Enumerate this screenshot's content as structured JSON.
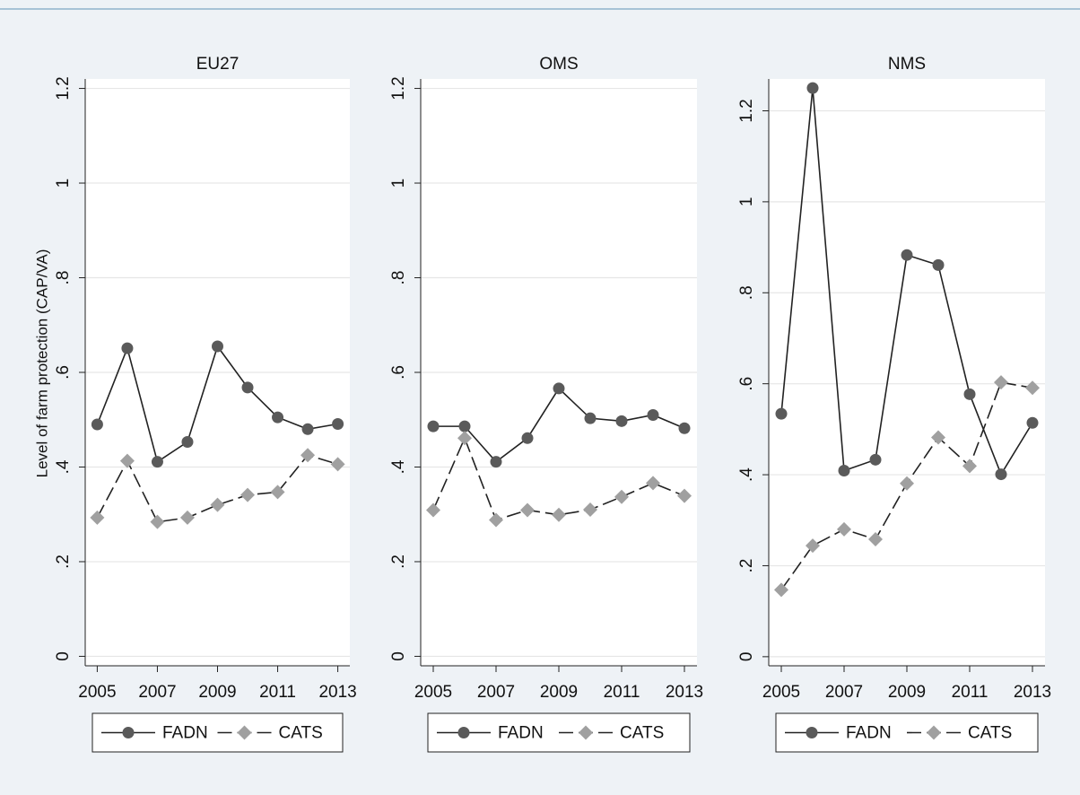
{
  "chart_data": [
    {
      "type": "line",
      "title": "EU27",
      "ylabel": "Level of farm protection (CAP/VA)",
      "x": [
        2005,
        2006,
        2007,
        2008,
        2009,
        2010,
        2011,
        2012,
        2013
      ],
      "xlim": [
        2004.6,
        2013.4
      ],
      "xticks": [
        2005,
        2007,
        2009,
        2011,
        2013
      ],
      "ylim": [
        -0.02,
        1.22
      ],
      "yticks": [
        0,
        {
          "value": 0.2,
          "label": ".2"
        },
        {
          "value": 0.4,
          "label": ".4"
        },
        {
          "value": 0.6,
          "label": ".6"
        },
        {
          "value": 0.8,
          "label": ".8"
        },
        1,
        1.2
      ],
      "grid": true,
      "series": [
        {
          "name": "FADN",
          "color": "#5a5a5a",
          "line_style": "solid",
          "marker": "circle",
          "values": [
            0.49,
            0.651,
            0.411,
            0.453,
            0.655,
            0.568,
            0.505,
            0.48,
            0.491
          ]
        },
        {
          "name": "CATS",
          "color": "#a0a0a0",
          "line_style": "dash",
          "marker": "diamond",
          "values": [
            0.293,
            0.413,
            0.284,
            0.293,
            0.32,
            0.341,
            0.347,
            0.425,
            0.406
          ]
        }
      ]
    },
    {
      "type": "line",
      "title": "OMS",
      "x": [
        2005,
        2006,
        2007,
        2008,
        2009,
        2010,
        2011,
        2012,
        2013
      ],
      "xlim": [
        2004.6,
        2013.4
      ],
      "xticks": [
        2005,
        2007,
        2009,
        2011,
        2013
      ],
      "ylim": [
        -0.02,
        1.22
      ],
      "yticks": [
        0,
        {
          "value": 0.2,
          "label": ".2"
        },
        {
          "value": 0.4,
          "label": ".4"
        },
        {
          "value": 0.6,
          "label": ".6"
        },
        {
          "value": 0.8,
          "label": ".8"
        },
        1,
        1.2
      ],
      "grid": true,
      "series": [
        {
          "name": "FADN",
          "color": "#5a5a5a",
          "line_style": "solid",
          "marker": "circle",
          "values": [
            0.486,
            0.486,
            0.411,
            0.461,
            0.566,
            0.503,
            0.497,
            0.51,
            0.482
          ]
        },
        {
          "name": "CATS",
          "color": "#a0a0a0",
          "line_style": "dash",
          "marker": "diamond",
          "values": [
            0.309,
            0.461,
            0.288,
            0.309,
            0.299,
            0.31,
            0.337,
            0.366,
            0.339
          ]
        }
      ]
    },
    {
      "type": "line",
      "title": "NMS",
      "x": [
        2005,
        2006,
        2007,
        2008,
        2009,
        2010,
        2011,
        2012,
        2013
      ],
      "xlim": [
        2004.6,
        2013.4
      ],
      "xticks": [
        2005,
        2007,
        2009,
        2011,
        2013
      ],
      "ylim": [
        -0.02,
        1.27
      ],
      "yticks": [
        0,
        {
          "value": 0.2,
          "label": ".2"
        },
        {
          "value": 0.4,
          "label": ".4"
        },
        {
          "value": 0.6,
          "label": ".6"
        },
        {
          "value": 0.8,
          "label": ".8"
        },
        1,
        1.2
      ],
      "grid": true,
      "series": [
        {
          "name": "FADN",
          "color": "#5a5a5a",
          "line_style": "solid",
          "marker": "circle",
          "values": [
            0.534,
            1.25,
            0.409,
            0.433,
            0.883,
            0.861,
            0.577,
            0.401,
            0.514
          ]
        },
        {
          "name": "CATS",
          "color": "#a0a0a0",
          "line_style": "dash",
          "marker": "diamond",
          "values": [
            0.147,
            0.244,
            0.28,
            0.258,
            0.381,
            0.482,
            0.419,
            0.603,
            0.591
          ]
        }
      ]
    }
  ]
}
